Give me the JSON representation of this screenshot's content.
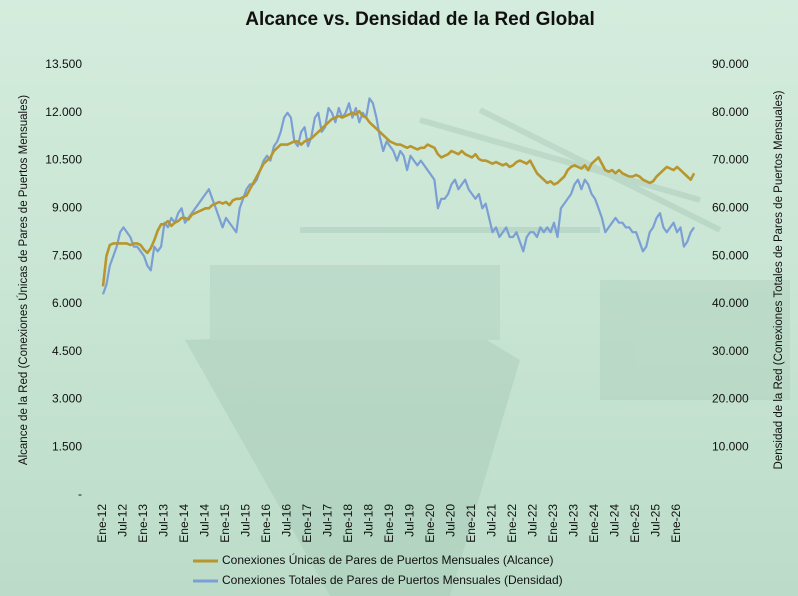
{
  "chart_data": {
    "type": "line",
    "title": "Alcance vs. Densidad de la Red Global",
    "ylabel": "Alcance de la Red (Conexiones Únicas de Pares de Puertos Mensuales)",
    "y2label": "Densidad de la Red (Conexiones Totales de Pares de Puertos Mensuales)",
    "legend": "bottom",
    "grid": false,
    "categories": [
      "Ene-12",
      null,
      null,
      null,
      null,
      null,
      "Jul-12",
      null,
      null,
      null,
      null,
      null,
      "Ene-13",
      null,
      null,
      null,
      null,
      null,
      "Jul-13",
      null,
      null,
      null,
      null,
      null,
      "Ene-14",
      null,
      null,
      null,
      null,
      null,
      "Jul-14",
      null,
      null,
      null,
      null,
      null,
      "Ene-15",
      null,
      null,
      null,
      null,
      null,
      "Jul-15",
      null,
      null,
      null,
      null,
      null,
      "Ene-16",
      null,
      null,
      null,
      null,
      null,
      "Jul-16",
      null,
      null,
      null,
      null,
      null,
      "Ene-17",
      null,
      null,
      null,
      null,
      null,
      "Jul-17",
      null,
      null,
      null,
      null,
      null,
      "Ene-18",
      null,
      null,
      null,
      null,
      null,
      "Jul-18",
      null,
      null,
      null,
      null,
      null,
      "Ene-19",
      null,
      null,
      null,
      null,
      null,
      "Jul-19",
      null,
      null,
      null,
      null,
      null,
      "Ene-20",
      null,
      null,
      null,
      null,
      null,
      "Jul-20",
      null,
      null,
      null,
      null,
      null,
      "Ene-21",
      null,
      null,
      null,
      null,
      null,
      "Jul-21",
      null,
      null,
      null,
      null,
      null,
      "Ene-22",
      null,
      null,
      null,
      null,
      null,
      "Jul-22",
      null,
      null,
      null,
      null,
      null,
      "Ene-23",
      null,
      null,
      null,
      null,
      null,
      "Jul-23",
      null,
      null,
      null,
      null,
      null,
      "Ene-24",
      null,
      null,
      null,
      null,
      null,
      "Jul-24",
      null,
      null,
      null,
      null,
      null,
      "Ene-25",
      null,
      null,
      null,
      null,
      null,
      "Jul-25",
      null,
      null,
      null,
      null,
      null,
      "Ene-26",
      null,
      null,
      null,
      null,
      null
    ],
    "series": [
      {
        "name": "Conexiones Únicas de Pares de Puertos Mensuales (Alcance)",
        "color": "#b8962e",
        "axis": "y",
        "values": [
          6550,
          7500,
          7850,
          7900,
          7900,
          7900,
          7900,
          7900,
          7850,
          7900,
          7900,
          7850,
          7700,
          7600,
          7750,
          8000,
          8300,
          8500,
          8500,
          8600,
          8450,
          8550,
          8600,
          8700,
          8700,
          8650,
          8800,
          8850,
          8900,
          8950,
          9000,
          9000,
          9100,
          9150,
          9200,
          9150,
          9200,
          9100,
          9250,
          9300,
          9300,
          9350,
          9400,
          9600,
          9800,
          10000,
          10200,
          10400,
          10500,
          10600,
          10800,
          10900,
          11000,
          11000,
          11000,
          11050,
          11100,
          11100,
          11000,
          11100,
          11150,
          11200,
          11300,
          11400,
          11500,
          11600,
          11700,
          11800,
          11850,
          11900,
          11850,
          11900,
          11950,
          12000,
          11950,
          12050,
          11900,
          11850,
          11700,
          11600,
          11500,
          11400,
          11300,
          11200,
          11100,
          11050,
          11000,
          11000,
          10950,
          10900,
          10950,
          10900,
          10850,
          10900,
          10900,
          11000,
          10950,
          10900,
          10700,
          10600,
          10650,
          10700,
          10800,
          10750,
          10700,
          10800,
          10700,
          10650,
          10600,
          10700,
          10550,
          10500,
          10500,
          10450,
          10400,
          10450,
          10400,
          10350,
          10400,
          10300,
          10350,
          10450,
          10500,
          10450,
          10400,
          10500,
          10300,
          10100,
          10000,
          9900,
          9800,
          9850,
          9750,
          9800,
          9900,
          10000,
          10200,
          10300,
          10350,
          10300,
          10250,
          10350,
          10200,
          10400,
          10500,
          10600,
          10400,
          10200,
          10150,
          10200,
          10100,
          10200,
          10100,
          10050,
          10000,
          10000,
          10050,
          10000,
          9900,
          9850,
          9800,
          9850,
          10000,
          10100,
          10200,
          10300,
          10250,
          10200,
          10300,
          10200,
          10100,
          10000,
          9900,
          10100
        ]
      },
      {
        "name": "Conexiones Totales de Pares de Puertos Mensuales (Densidad)",
        "color": "#7b9fd4",
        "axis": "y2",
        "values": [
          42000,
          44000,
          48000,
          50000,
          52000,
          55000,
          56000,
          55000,
          54000,
          52000,
          52000,
          51000,
          50000,
          48000,
          47000,
          52000,
          51000,
          52000,
          57000,
          56000,
          58000,
          57000,
          59000,
          60000,
          57000,
          58000,
          59000,
          60000,
          61000,
          62000,
          63000,
          64000,
          62000,
          60000,
          58000,
          56000,
          58000,
          57000,
          56000,
          55000,
          60000,
          62000,
          64000,
          65000,
          65000,
          66000,
          68000,
          70000,
          71000,
          70000,
          73000,
          74000,
          76000,
          79000,
          80000,
          79000,
          74000,
          73000,
          76000,
          77000,
          73000,
          75000,
          79000,
          80000,
          76000,
          77000,
          81000,
          80000,
          78000,
          81000,
          79000,
          80000,
          82000,
          79000,
          81000,
          78000,
          80000,
          79000,
          83000,
          82000,
          79000,
          75000,
          72000,
          74000,
          73000,
          72000,
          70000,
          72000,
          71000,
          68000,
          71000,
          70000,
          69000,
          70000,
          69000,
          68000,
          67000,
          66000,
          60000,
          62000,
          62000,
          63000,
          65000,
          66000,
          64000,
          65000,
          66000,
          64000,
          63000,
          62000,
          63000,
          60000,
          61000,
          58000,
          55000,
          56000,
          54000,
          55000,
          56000,
          54000,
          54000,
          55000,
          53000,
          51000,
          54000,
          55000,
          55000,
          54000,
          56000,
          55000,
          56000,
          55000,
          57000,
          54000,
          60000,
          61000,
          62000,
          63000,
          65000,
          66000,
          64000,
          66000,
          65000,
          63000,
          62000,
          60000,
          58000,
          55000,
          56000,
          57000,
          58000,
          57000,
          57000,
          56000,
          56000,
          55000,
          55000,
          53000,
          51000,
          52000,
          55000,
          56000,
          58000,
          59000,
          56000,
          55000,
          56000,
          57000,
          55000,
          56000,
          52000,
          53000,
          55000,
          56000
        ]
      }
    ],
    "ylim": [
      0,
      13500
    ],
    "yticks": [
      {
        "value": 0,
        "label": "-"
      },
      {
        "value": 1500,
        "label": "1.500"
      },
      {
        "value": 3000,
        "label": "3.000"
      },
      {
        "value": 4500,
        "label": "4.500"
      },
      {
        "value": 6000,
        "label": "6.000"
      },
      {
        "value": 7500,
        "label": "7.500"
      },
      {
        "value": 9000,
        "label": "9.000"
      },
      {
        "value": 10500,
        "label": "10.500"
      },
      {
        "value": 12000,
        "label": "12.000"
      },
      {
        "value": 13500,
        "label": "13.500"
      }
    ],
    "y2lim": [
      0,
      90000
    ],
    "y2ticks": [
      {
        "value": 10000,
        "label": "10.000"
      },
      {
        "value": 20000,
        "label": "20.000"
      },
      {
        "value": 30000,
        "label": "30.000"
      },
      {
        "value": 40000,
        "label": "40.000"
      },
      {
        "value": 50000,
        "label": "50.000"
      },
      {
        "value": 60000,
        "label": "60.000"
      },
      {
        "value": 70000,
        "label": "70.000"
      },
      {
        "value": 80000,
        "label": "80.000"
      },
      {
        "value": 90000,
        "label": "90.000"
      }
    ]
  }
}
